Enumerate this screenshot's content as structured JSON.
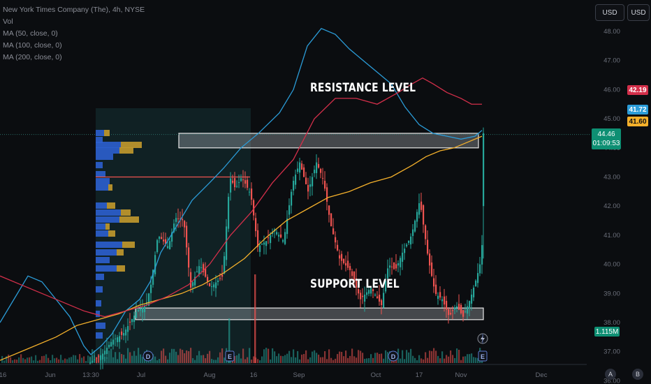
{
  "legend": {
    "symbol": "New York Times Company (The), 4h, NYSE",
    "vol": "Vol",
    "ma50": "MA (50, close, 0)",
    "ma100": "MA (100, close, 0)",
    "ma200": "MA (200, close, 0)"
  },
  "toolbar": {
    "currency_left": "USD",
    "currency_right": "USD"
  },
  "price_scale": {
    "labels": [
      "48.00",
      "47.00",
      "46.00",
      "45.00",
      "44.00",
      "43.00",
      "42.00",
      "41.00",
      "40.00",
      "39.00",
      "38.00",
      "37.00",
      "36.00"
    ],
    "tags": {
      "ma200_value": "42.19",
      "ma200_color": "#d32f4a",
      "ma50_value": "41.72",
      "ma50_color": "#2b9cd8",
      "ma100_value": "41.60",
      "ma100_color": "#f4b02b",
      "last_price": "44.46",
      "countdown": "01:09:53",
      "volume": "1.115M"
    }
  },
  "time_axis": {
    "labels": [
      "16",
      "Jun",
      "13:30",
      "Jul",
      "Aug",
      "16",
      "Sep",
      "Oct",
      "17",
      "Nov",
      "Dec"
    ]
  },
  "annotations": {
    "resistance": "RESISTANCE LEVEL",
    "support": "SUPPORT LEVEL"
  },
  "event_markers": [
    {
      "label": "D",
      "type": "dividend"
    },
    {
      "label": "E",
      "type": "earnings"
    },
    {
      "label": "D",
      "type": "dividend"
    },
    {
      "label": "E",
      "type": "earnings"
    }
  ],
  "scale_buttons": {
    "auto": "A",
    "log": "B"
  },
  "colors": {
    "up": "#26a69a",
    "down": "#ef5350",
    "ma50": "#2b9cd8",
    "ma100": "#f4b02b",
    "ma200": "#d32f4a",
    "vp_up": "#2c5fcf",
    "vp_down": "#c39a2e",
    "zone_fill": "#e0e3eb"
  },
  "chart_data": {
    "type": "candlestick",
    "title": "New York Times Company (The), 4h, NYSE",
    "ylim": [
      36.0,
      48.0
    ],
    "x_ticks": [
      "16",
      "Jun",
      "13:30",
      "Jul",
      "Aug",
      "16",
      "Sep",
      "Oct",
      "17",
      "Nov",
      "Dec"
    ],
    "last_price": 44.46,
    "resistance_zone": [
      44.0,
      44.5
    ],
    "support_zone": [
      38.1,
      38.5
    ],
    "moving_averages": [
      {
        "name": "MA (50, close, 0)",
        "last": 41.72
      },
      {
        "name": "MA (100, close, 0)",
        "last": 41.6
      },
      {
        "name": "MA (200, close, 0)",
        "last": 42.19
      }
    ],
    "volume_last": "1.115M"
  }
}
